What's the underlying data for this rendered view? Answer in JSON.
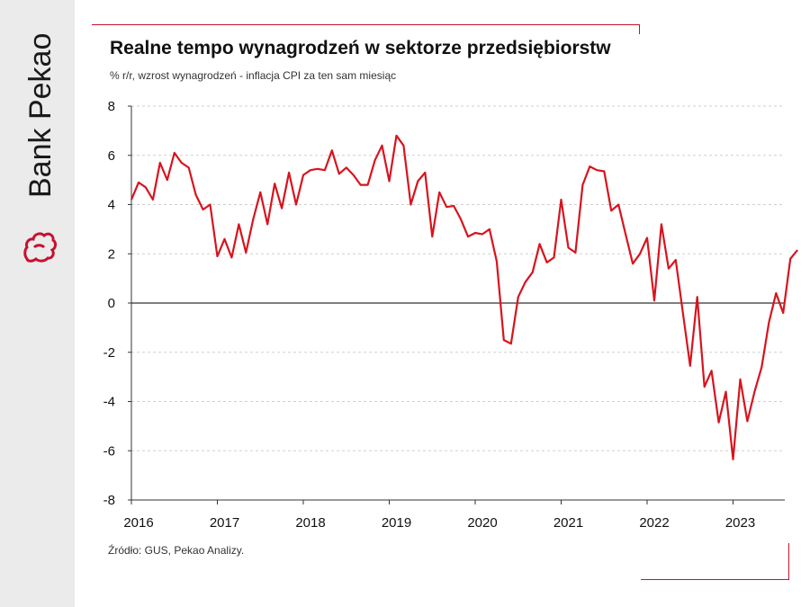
{
  "brand": {
    "name": "Bank Pekao",
    "logo_icon": "bison-logo-icon",
    "color": "#c8102e"
  },
  "header": {
    "title": "Realne tempo wynagrodzeń w sektorze przedsiębiorstw",
    "subtitle": "% r/r, wzrost wynagrodzeń  - inflacja CPI za ten sam miesiąc"
  },
  "footer": {
    "source": "Źródło: GUS,  Pekao Analizy."
  },
  "chart_data": {
    "type": "line",
    "title": "Realne tempo wynagrodzeń w sektorze przedsiębiorstw",
    "subtitle": "% r/r, wzrost wynagrodzeń  - inflacja CPI za ten sam miesiąc",
    "xlabel": "",
    "ylabel": "",
    "ylim": [
      -8,
      8
    ],
    "yticks": [
      8,
      6,
      4,
      2,
      0,
      -2,
      -4,
      -6,
      -8
    ],
    "xticks": [
      "2016",
      "2017",
      "2018",
      "2019",
      "2020",
      "2021",
      "2022",
      "2023"
    ],
    "x_start": "2016-01",
    "x_frequency": "monthly",
    "grid": "horizontal dashed",
    "zero_line": true,
    "line_color": "#d7141e",
    "series": [
      {
        "values": [
          4.2,
          4.9,
          4.7,
          4.2,
          5.7,
          5.0,
          6.1,
          5.7,
          5.5,
          4.4,
          3.8,
          4.0,
          1.9,
          2.6,
          1.85,
          3.2,
          2.05,
          3.4,
          4.5,
          3.2,
          4.85,
          3.85,
          5.3,
          4.0,
          5.2,
          5.4,
          5.45,
          5.4,
          6.2,
          5.25,
          5.5,
          5.2,
          4.8,
          4.8,
          5.8,
          6.4,
          4.95,
          6.8,
          6.4,
          4.0,
          4.95,
          5.3,
          2.7,
          4.5,
          3.9,
          3.95,
          3.4,
          2.7,
          2.85,
          2.8,
          3.0,
          1.7,
          -1.5,
          -1.65,
          0.25,
          0.85,
          1.25,
          2.4,
          1.65,
          1.85,
          4.2,
          2.25,
          2.05,
          4.8,
          5.55,
          5.4,
          5.35,
          3.75,
          4.0,
          2.8,
          1.6,
          2.0,
          2.65,
          0.1,
          3.2,
          1.4,
          1.75,
          -0.4,
          -2.55,
          0.25,
          -3.4,
          -2.75,
          -4.85,
          -3.6,
          -6.35,
          -3.1,
          -4.8,
          -3.6,
          -2.6,
          -0.8,
          0.4,
          -0.4,
          1.8,
          2.15
        ]
      }
    ]
  }
}
